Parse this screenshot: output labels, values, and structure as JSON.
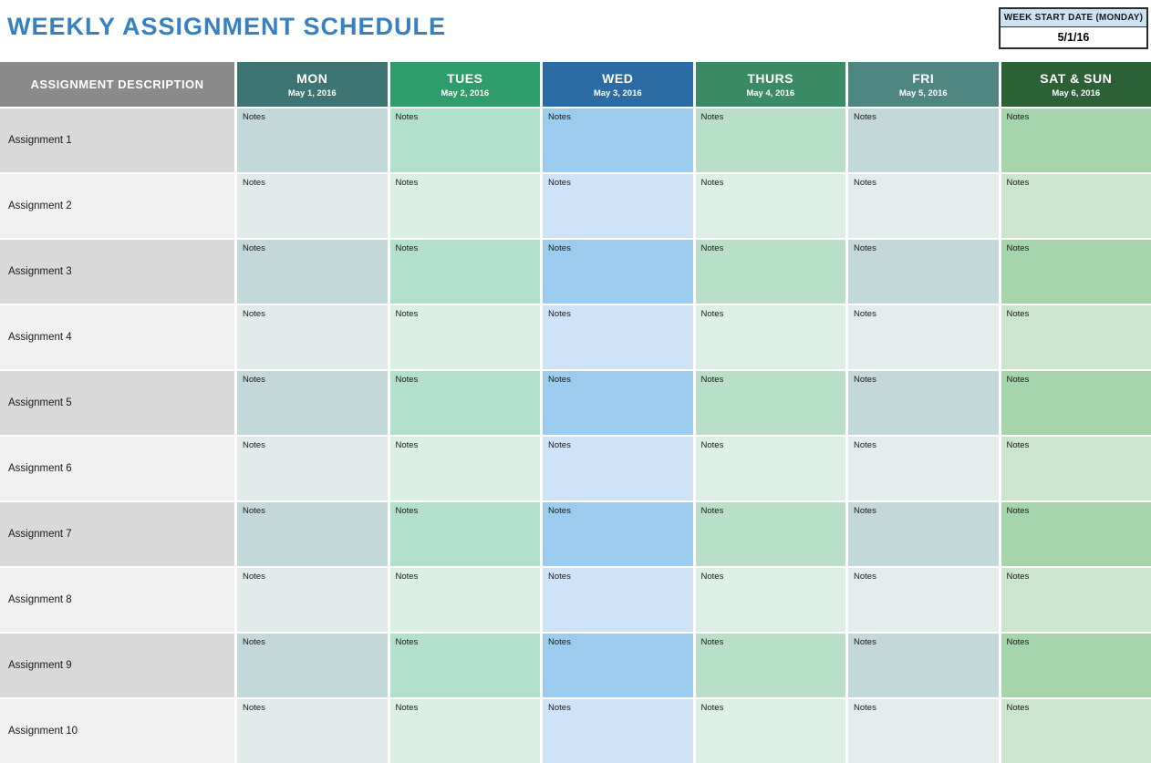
{
  "title": "WEEKLY ASSIGNMENT SCHEDULE",
  "week_start": {
    "label": "WEEK START DATE (MONDAY)",
    "value": "5/1/16"
  },
  "table": {
    "description_header": "ASSIGNMENT DESCRIPTION",
    "note_label": "Notes",
    "description_colors": {
      "header_bg": "#8A8A8A",
      "odd_bg": "#D9D9D9",
      "even_bg": "#F0F0F0"
    },
    "columns": [
      {
        "day": "MON",
        "date": "May 1, 2016",
        "header_bg": "#3E7473",
        "odd_bg": "#C3D9D9",
        "even_bg": "#E2EAEA"
      },
      {
        "day": "TUES",
        "date": "May 2, 2016",
        "header_bg": "#2E9C6B",
        "odd_bg": "#B3E0CD",
        "even_bg": "#DAF0E5"
      },
      {
        "day": "WED",
        "date": "May 3, 2016",
        "header_bg": "#2C6CA5",
        "odd_bg": "#9CCBEE",
        "even_bg": "#CFE3F8"
      },
      {
        "day": "THURS",
        "date": "May 4, 2016",
        "header_bg": "#3B8A66",
        "odd_bg": "#B9DFC9",
        "even_bg": "#DDF0E5"
      },
      {
        "day": "FRI",
        "date": "May 5, 2016",
        "header_bg": "#4F8682",
        "odd_bg": "#C3D8D8",
        "even_bg": "#E4ECEC"
      },
      {
        "day": "SAT & SUN",
        "date": "May 6, 2016",
        "header_bg": "#2B6134",
        "odd_bg": "#A5D4AB",
        "even_bg": "#CCE6CE"
      }
    ],
    "rows": [
      "Assignment 1",
      "Assignment 2",
      "Assignment 3",
      "Assignment 4",
      "Assignment 5",
      "Assignment 6",
      "Assignment 7",
      "Assignment 8",
      "Assignment 9",
      "Assignment 10"
    ]
  },
  "colors": {
    "title": "#3781C1",
    "week_label_bg": "#CDE3F2",
    "week_box_border": "#2B2B2B"
  }
}
